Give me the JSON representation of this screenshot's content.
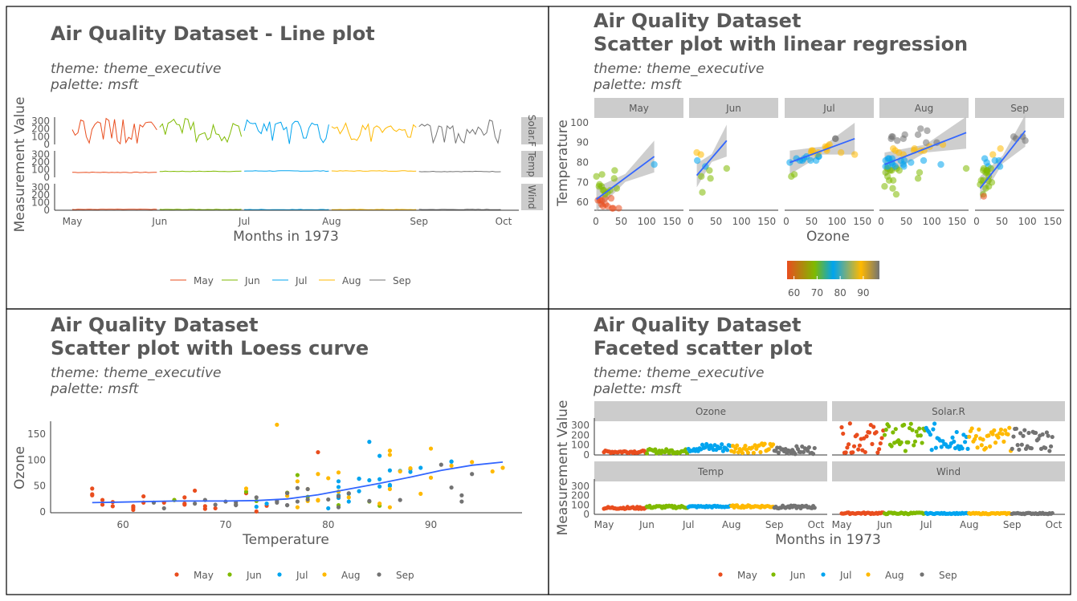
{
  "colors": {
    "May": "#e94d1e",
    "Jun": "#7fba00",
    "Jul": "#00a4ef",
    "Aug": "#ffb900",
    "Sep": "#737373",
    "regression": "#3366ff",
    "ribbon": "#bdbdbd",
    "strip": "#cccccc",
    "text": "#595959"
  },
  "months": [
    "May",
    "Jun",
    "Jul",
    "Aug",
    "Sep"
  ],
  "panel1": {
    "title": "Air Quality Dataset - Line plot",
    "subtitle_theme": "theme: theme_executive",
    "subtitle_palette": "palette: msft",
    "xlabel": "Months in 1973",
    "ylabel": "Measurement Value",
    "x_ticks": [
      "May",
      "Jun",
      "Jul",
      "Aug",
      "Sep",
      "Oct"
    ],
    "y_ticks": [
      "0",
      "100",
      "200",
      "300"
    ],
    "facets": [
      "Solar.R",
      "Temp",
      "Wind"
    ],
    "facet_labels_shown": [
      "Solar.F",
      "Temp",
      "Wind"
    ],
    "legend": [
      "May",
      "Jun",
      "Jul",
      "Aug",
      "Sep"
    ]
  },
  "panel2": {
    "title_line1": "Air Quality Dataset",
    "title_line2": "Scatter plot with linear regression",
    "subtitle_theme": "theme: theme_executive",
    "subtitle_palette": "palette: msft",
    "xlabel": "Ozone",
    "ylabel": "Temperature",
    "facets": [
      "May",
      "Jun",
      "Jul",
      "Aug",
      "Sep"
    ],
    "x_ticks": [
      "0",
      "50",
      "100",
      "150"
    ],
    "y_ticks": [
      "60",
      "70",
      "80",
      "90",
      "100"
    ],
    "colorbar_ticks": [
      "60",
      "70",
      "80",
      "90"
    ]
  },
  "panel3": {
    "title_line1": "Air Quality Dataset",
    "title_line2": "Scatter plot with Loess curve",
    "subtitle_theme": "theme: theme_executive",
    "subtitle_palette": "palette: msft",
    "xlabel": "Temperature",
    "ylabel": "Ozone",
    "x_ticks": [
      "60",
      "70",
      "80",
      "90"
    ],
    "y_ticks": [
      "0",
      "50",
      "100",
      "150"
    ],
    "legend": [
      "May",
      "Jun",
      "Jul",
      "Aug",
      "Sep"
    ]
  },
  "panel4": {
    "title_line1": "Air Quality Dataset",
    "title_line2": "Faceted scatter plot",
    "subtitle_theme": "theme: theme_executive",
    "subtitle_palette": "palette: msft",
    "xlabel": "Months in 1973",
    "ylabel": "Measurement Value",
    "facets": [
      "Ozone",
      "Solar.R",
      "Temp",
      "Wind"
    ],
    "x_ticks": [
      "May",
      "Jun",
      "Jul",
      "Aug",
      "Sep",
      "Oct"
    ],
    "y_ticks": [
      "0",
      "100",
      "200",
      "300"
    ],
    "legend": [
      "May",
      "Jun",
      "Jul",
      "Aug",
      "Sep"
    ]
  },
  "chart_data": [
    {
      "type": "line",
      "title": "Air Quality Dataset - Line plot",
      "xlabel": "Months in 1973",
      "ylabel": "Measurement Value",
      "x_range": [
        "May",
        "Oct"
      ],
      "ylim": [
        0,
        300
      ],
      "facets": {
        "Solar.R": [
          190,
          118,
          149,
          313,
          299,
          99,
          19,
          194,
          256,
          290,
          274,
          65,
          334,
          307,
          78,
          322,
          44,
          8,
          320,
          25,
          92,
          66,
          266,
          13,
          252,
          223,
          279,
          286,
          287,
          242,
          186,
          220,
          264,
          127,
          273,
          291,
          323,
          259,
          250,
          148,
          332,
          322,
          191,
          284,
          37,
          120,
          137,
          150,
          59,
          91,
          250,
          135,
          127,
          47,
          98,
          31,
          138,
          269,
          248,
          236,
          101,
          175,
          314,
          276,
          267,
          272,
          175,
          139,
          264,
          175,
          291,
          48,
          260,
          274,
          285,
          187,
          220,
          7,
          258,
          295,
          294,
          223,
          81,
          82,
          213,
          275,
          253,
          254,
          83,
          24,
          77,
          255,
          229,
          207,
          222,
          137,
          192,
          273,
          157,
          64,
          71,
          51,
          115,
          244,
          190,
          259,
          36,
          212,
          238,
          215,
          153,
          203,
          225,
          237,
          188,
          167,
          197,
          183,
          189,
          95,
          92,
          252,
          220,
          230,
          259,
          236,
          259,
          238,
          24,
          112,
          237,
          224,
          27,
          238,
          201,
          238,
          14,
          139,
          49,
          20,
          193,
          145,
          191,
          131,
          223
        ],
        "Temp_mean_by_month": {
          "May": 65.5,
          "Jun": 79.1,
          "Jul": 83.9,
          "Aug": 84.0,
          "Sep": 76.9
        },
        "Wind_mean_by_month": {
          "May": 11.6,
          "Jun": 10.3,
          "Jul": 8.9,
          "Aug": 8.8,
          "Sep": 10.2
        }
      }
    },
    {
      "type": "scatter",
      "title": "Air Quality Dataset / Scatter plot with linear regression",
      "xlabel": "Ozone",
      "ylabel": "Temperature",
      "xlim": [
        0,
        170
      ],
      "ylim": [
        56,
        100
      ],
      "series": [
        {
          "name": "May",
          "x": [
            41,
            36,
            12,
            18,
            28,
            23,
            19,
            8,
            7,
            16,
            11,
            14,
            18,
            14,
            34,
            6,
            30,
            11,
            1,
            11,
            4,
            32,
            23,
            45,
            115,
            37
          ],
          "y": [
            67,
            72,
            74,
            62,
            66,
            65,
            59,
            61,
            69,
            66,
            68,
            58,
            64,
            66,
            57,
            68,
            62,
            59,
            73,
            61,
            61,
            57,
            58,
            57,
            79,
            76
          ],
          "fit": {
            "x0": 1,
            "y0": 61.5,
            "x1": 115,
            "y1": 83
          }
        },
        {
          "name": "Jun",
          "x": [
            29,
            71,
            39,
            23,
            21,
            37,
            20,
            12,
            13
          ],
          "y": [
            78,
            77,
            72,
            65,
            73,
            76,
            84,
            85,
            81
          ],
          "fit": {
            "x0": 12,
            "y0": 73.5,
            "x1": 71,
            "y1": 91
          }
        },
        {
          "name": "Jul",
          "x": [
            135,
            49,
            32,
            64,
            40,
            77,
            97,
            97,
            85,
            10,
            27,
            7,
            48,
            35,
            61,
            79,
            63,
            16,
            80,
            108,
            20,
            52,
            82,
            50,
            64,
            59
          ],
          "y": [
            84,
            85,
            81,
            83,
            83,
            88,
            92,
            92,
            89,
            73,
            81,
            80,
            81,
            82,
            84,
            87,
            85,
            74,
            86,
            85,
            82,
            86,
            88,
            86,
            83,
            81
          ],
          "fit": {
            "x0": 7,
            "y0": 80,
            "x1": 135,
            "y1": 92
          }
        },
        {
          "name": "Aug",
          "x": [
            39,
            9,
            16,
            78,
            35,
            66,
            122,
            89,
            110,
            44,
            28,
            65,
            22,
            59,
            23,
            31,
            44,
            21,
            9,
            45,
            168,
            73,
            76,
            118,
            84,
            85,
            96,
            78,
            73,
            91,
            47,
            32,
            20,
            23,
            21,
            24,
            44,
            21,
            28,
            9,
            13,
            46,
            18,
            13,
            24,
            16,
            13,
            23,
            36,
            7,
            14,
            30
          ],
          "y": [
            81,
            81,
            82,
            86,
            85,
            87,
            89,
            90,
            90,
            92,
            86,
            86,
            82,
            80,
            79,
            77,
            79,
            76,
            78,
            78,
            77,
            72,
            75,
            79,
            81,
            86,
            88,
            97,
            94,
            96,
            94,
            91,
            92,
            93,
            93,
            87,
            84,
            80,
            78,
            75,
            73,
            81,
            76,
            77,
            71,
            71,
            78,
            67,
            76,
            68,
            82,
            64
          ],
          "fit": {
            "x0": 7,
            "y0": 79,
            "x1": 168,
            "y1": 95
          }
        },
        {
          "name": "Sep",
          "x": [
            96,
            78,
            73,
            91,
            47,
            32,
            20,
            23,
            21,
            24,
            44,
            21,
            28,
            9,
            13,
            46,
            18,
            13,
            24,
            16,
            13,
            23,
            36,
            7,
            14,
            30,
            14,
            18,
            20
          ],
          "y": [
            91,
            92,
            93,
            93,
            87,
            84,
            80,
            78,
            75,
            73,
            81,
            76,
            77,
            71,
            71,
            78,
            67,
            76,
            68,
            82,
            64,
            71,
            81,
            69,
            63,
            70,
            77,
            75,
            76
          ],
          "fit": {
            "x0": 7,
            "y0": 67,
            "x1": 96,
            "y1": 96
          }
        }
      ]
    },
    {
      "type": "scatter",
      "title": "Air Quality Dataset / Scatter plot with Loess curve",
      "xlabel": "Temperature",
      "ylabel": "Ozone",
      "xlim": [
        56,
        97
      ],
      "ylim": [
        0,
        170
      ],
      "series": [
        {
          "name": "May",
          "x": [
            67,
            72,
            74,
            62,
            66,
            65,
            59,
            61,
            69,
            66,
            68,
            58,
            64,
            66,
            57,
            68,
            62,
            59,
            73,
            61,
            61,
            57,
            58,
            57,
            79,
            76
          ],
          "y": [
            41,
            36,
            12,
            18,
            28,
            23,
            19,
            8,
            7,
            16,
            11,
            14,
            18,
            14,
            34,
            6,
            30,
            11,
            1,
            11,
            4,
            32,
            23,
            45,
            115,
            37
          ]
        },
        {
          "name": "Jun",
          "x": [
            78,
            77,
            72,
            65,
            73,
            76,
            84,
            85,
            81
          ],
          "y": [
            29,
            71,
            39,
            23,
            21,
            37,
            20,
            12,
            13
          ]
        },
        {
          "name": "Jul",
          "x": [
            84,
            85,
            81,
            83,
            83,
            88,
            92,
            92,
            89,
            73,
            81,
            80,
            81,
            82,
            84,
            87,
            85,
            74,
            86,
            85,
            82,
            86,
            88,
            86,
            83,
            81
          ],
          "y": [
            135,
            49,
            32,
            64,
            40,
            77,
            97,
            97,
            85,
            10,
            27,
            7,
            48,
            35,
            61,
            79,
            63,
            16,
            80,
            108,
            20,
            52,
            82,
            50,
            64,
            59
          ]
        },
        {
          "name": "Aug",
          "x": [
            81,
            86,
            85,
            87,
            89,
            90,
            90,
            92,
            86,
            86,
            82,
            80,
            79,
            77,
            79,
            76,
            78,
            78,
            77,
            72,
            75,
            79,
            81,
            86,
            88,
            97,
            94,
            96
          ],
          "y": [
            39,
            9,
            16,
            78,
            35,
            66,
            122,
            89,
            110,
            44,
            28,
            65,
            22,
            59,
            23,
            31,
            44,
            21,
            9,
            45,
            168,
            73,
            76,
            118,
            84,
            85,
            96,
            78
          ]
        },
        {
          "name": "Sep",
          "x": [
            94,
            91,
            92,
            93,
            93,
            87,
            84,
            80,
            78,
            75,
            73,
            81,
            76,
            77,
            71,
            71,
            78,
            67,
            76,
            68,
            82,
            64,
            71,
            81,
            69,
            63,
            70,
            77,
            75,
            76
          ],
          "y": [
            73,
            91,
            47,
            32,
            20,
            23,
            21,
            24,
            44,
            21,
            28,
            9,
            13,
            46,
            18,
            13,
            24,
            16,
            13,
            23,
            36,
            7,
            14,
            30,
            14,
            18,
            20,
            20,
            18,
            36
          ]
        }
      ],
      "loess": {
        "x": [
          57,
          60,
          65,
          70,
          73,
          76,
          79,
          82,
          85,
          88,
          91,
          94,
          97
        ],
        "y": [
          18,
          19,
          21,
          21,
          22,
          25,
          33,
          44,
          55,
          67,
          80,
          90,
          96
        ]
      }
    },
    {
      "type": "scatter",
      "title": "Air Quality Dataset / Faceted scatter plot",
      "xlabel": "Months in 1973",
      "ylabel": "Measurement Value",
      "facets": [
        "Ozone",
        "Solar.R",
        "Temp",
        "Wind"
      ],
      "ylim": [
        0,
        300
      ]
    }
  ]
}
